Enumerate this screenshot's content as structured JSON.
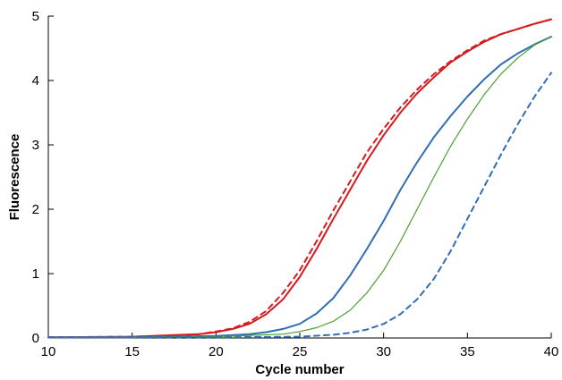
{
  "chart_data": {
    "type": "line",
    "xlabel": "Cycle number",
    "ylabel": "Fluorescence",
    "xlim": [
      10,
      40
    ],
    "ylim": [
      0,
      5
    ],
    "xticks": [
      10,
      15,
      20,
      25,
      30,
      35,
      40
    ],
    "yticks": [
      0,
      1,
      2,
      3,
      4,
      5
    ],
    "grid": false,
    "legend": "none",
    "series": [
      {
        "color": "#d7191c",
        "style": "solid",
        "x": [
          10,
          15,
          18,
          19,
          20,
          21,
          22,
          23,
          24,
          25,
          26,
          27,
          28,
          29,
          30,
          31,
          32,
          33,
          34,
          35,
          36,
          37,
          38,
          39,
          40
        ],
        "y": [
          0.01,
          0.02,
          0.05,
          0.06,
          0.09,
          0.14,
          0.22,
          0.37,
          0.6,
          0.95,
          1.38,
          1.85,
          2.3,
          2.75,
          3.15,
          3.5,
          3.8,
          4.05,
          4.28,
          4.45,
          4.6,
          4.72,
          4.8,
          4.88,
          4.95
        ]
      },
      {
        "color": "#d7191c",
        "style": "dashed",
        "x": [
          10,
          15,
          18,
          19,
          20,
          21,
          22,
          23,
          24,
          25,
          26,
          27,
          28,
          29,
          30,
          31,
          32,
          33,
          34,
          35,
          36,
          37,
          38,
          39,
          40
        ],
        "y": [
          0.01,
          0.02,
          0.04,
          0.06,
          0.1,
          0.15,
          0.25,
          0.42,
          0.7,
          1.05,
          1.5,
          1.98,
          2.43,
          2.88,
          3.25,
          3.58,
          3.86,
          4.1,
          4.3,
          4.47,
          4.62,
          4.72,
          4.8,
          4.88,
          4.95
        ]
      },
      {
        "color": "#2f6eb5",
        "style": "solid",
        "x": [
          10,
          15,
          20,
          22,
          23,
          24,
          25,
          26,
          27,
          28,
          29,
          30,
          31,
          32,
          33,
          34,
          35,
          36,
          37,
          38,
          39,
          40
        ],
        "y": [
          0.01,
          0.01,
          0.03,
          0.06,
          0.09,
          0.14,
          0.22,
          0.38,
          0.62,
          0.97,
          1.38,
          1.82,
          2.3,
          2.73,
          3.12,
          3.45,
          3.75,
          4.02,
          4.25,
          4.42,
          4.56,
          4.68
        ]
      },
      {
        "color": "#4aa02c",
        "style": "solid",
        "x": [
          10,
          15,
          20,
          24,
          25,
          26,
          27,
          28,
          29,
          30,
          31,
          32,
          33,
          34,
          35,
          36,
          37,
          38,
          39,
          40
        ],
        "y": [
          0.01,
          0.01,
          0.02,
          0.06,
          0.1,
          0.16,
          0.26,
          0.43,
          0.7,
          1.05,
          1.5,
          2.0,
          2.5,
          2.98,
          3.4,
          3.78,
          4.1,
          4.35,
          4.55,
          4.68
        ]
      },
      {
        "color": "#2f6eb5",
        "style": "dashed",
        "x": [
          10,
          15,
          20,
          25,
          27,
          28,
          29,
          30,
          31,
          32,
          33,
          34,
          35,
          36,
          37,
          38,
          39,
          40
        ],
        "y": [
          0.01,
          0.01,
          0.01,
          0.02,
          0.05,
          0.08,
          0.13,
          0.22,
          0.37,
          0.6,
          0.92,
          1.35,
          1.85,
          2.35,
          2.85,
          3.32,
          3.75,
          4.12
        ]
      }
    ]
  }
}
